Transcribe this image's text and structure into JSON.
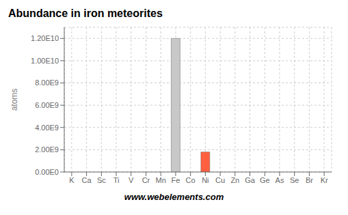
{
  "chart_data": {
    "type": "bar",
    "title": "Abundance in iron meteorites",
    "ylabel": "atoms",
    "annotations": [
      "www.webelements.com"
    ],
    "categories": [
      "K",
      "Ca",
      "Sc",
      "Ti",
      "V",
      "Cr",
      "Mn",
      "Fe",
      "Co",
      "Ni",
      "Cu",
      "Zn",
      "Ga",
      "Ge",
      "As",
      "Se",
      "Br",
      "Kr"
    ],
    "values": [
      null,
      null,
      null,
      null,
      null,
      null,
      null,
      12000000000.0,
      null,
      1800000000.0,
      null,
      null,
      null,
      null,
      null,
      null,
      null,
      null
    ],
    "colors": [
      "#FFFFFF",
      "#FFFFFF",
      "#FF3030",
      "#FF3030",
      "#FF3030",
      "#FF3030",
      "#FF3030",
      "#C8C8C8",
      "#FF4040",
      "#FF6040",
      "#FFD700",
      "#FFD700",
      "#FFD700",
      "#FFD700",
      "#FFD700",
      "#FFD700",
      "#8B4513",
      "#FFD700"
    ],
    "ylim": [
      0,
      13000000000.0
    ],
    "yticks": [
      {
        "value": 0,
        "label": "0.00E0"
      },
      {
        "value": 2000000000.0,
        "label": "2.00E9"
      },
      {
        "value": 4000000000.0,
        "label": "4.00E9"
      },
      {
        "value": 6000000000.0,
        "label": "6.00E9"
      },
      {
        "value": 8000000000.0,
        "label": "8.00E9"
      },
      {
        "value": 10000000000.0,
        "label": "1.00E10"
      },
      {
        "value": 12000000000.0,
        "label": "1.20E10"
      }
    ],
    "grid": true
  }
}
